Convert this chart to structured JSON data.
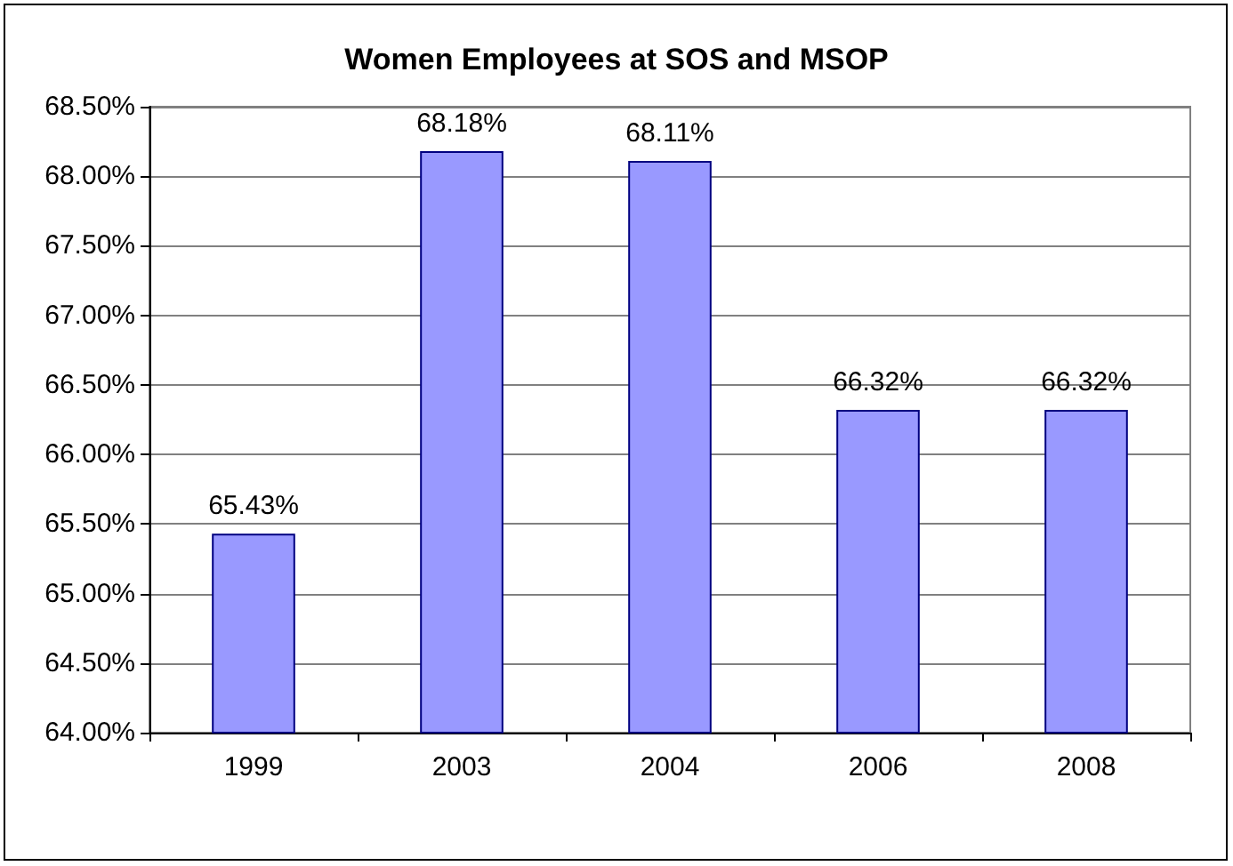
{
  "chart_data": {
    "type": "bar",
    "title": "Women Employees at SOS and MSOP",
    "categories": [
      "1999",
      "2003",
      "2004",
      "2006",
      "2008"
    ],
    "values": [
      65.43,
      68.18,
      68.11,
      66.32,
      66.32
    ],
    "value_labels": [
      "65.43%",
      "68.18%",
      "68.11%",
      "66.32%",
      "66.32%"
    ],
    "color": "#9999ff",
    "ylim": [
      64,
      68.5
    ],
    "yticks": [
      {
        "value": 64,
        "label": "64.00%"
      },
      {
        "value": 64.5,
        "label": "64.50%"
      },
      {
        "value": 65,
        "label": "65.00%"
      },
      {
        "value": 65.5,
        "label": "65.50%"
      },
      {
        "value": 66,
        "label": "66.00%"
      },
      {
        "value": 66.5,
        "label": "66.50%"
      },
      {
        "value": 67,
        "label": "67.00%"
      },
      {
        "value": 67.5,
        "label": "67.50%"
      },
      {
        "value": 68,
        "label": "68.00%"
      },
      {
        "value": 68.5,
        "label": "68.50%"
      }
    ],
    "grid": "y"
  }
}
